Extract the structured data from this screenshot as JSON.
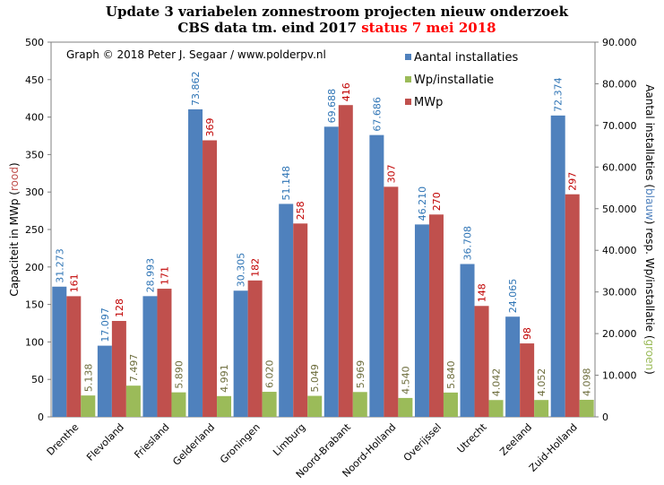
{
  "chart_data": {
    "type": "bar",
    "title_line1": "Update 3 variabelen zonnestroom projecten nieuw onderzoek",
    "title_line2": "CBS data tm. eind 2017",
    "title_status": "status 7 mei 2018",
    "credit": "Graph © 2018 Peter J. Segaar / www.polderpv.nl",
    "ylabel_left": {
      "pre": "Capaciteit in MWp (",
      "color_word": "rood",
      "post": ")"
    },
    "ylabel_right": {
      "p1": "Aantal installaties (",
      "c1": "blauw",
      "p2": ") resp. Wp/installatie (",
      "c2": "groen",
      "p3": ")"
    },
    "left_axis": {
      "min": 0,
      "max": 500,
      "step": 50,
      "ticks": [
        "0",
        "50",
        "100",
        "150",
        "200",
        "250",
        "300",
        "350",
        "400",
        "450",
        "500"
      ]
    },
    "right_axis": {
      "min": 0,
      "max": 90000,
      "step": 10000,
      "ticks": [
        "0",
        "10.000",
        "20.000",
        "30.000",
        "40.000",
        "50.000",
        "60.000",
        "70.000",
        "80.000",
        "90.000"
      ]
    },
    "grid": false,
    "legend_position": "top-right",
    "categories": [
      "Drenthe",
      "Flevoland",
      "Friesland",
      "Gelderland",
      "Groningen",
      "Limburg",
      "Noord-Brabant",
      "Noord-Holland",
      "Overijssel",
      "Utrecht",
      "Zeeland",
      "Zuid-Holland"
    ],
    "series": [
      {
        "name": "Aantal installaties",
        "axis": "right",
        "color": "#4f81bd",
        "label_color": "#2e74b5",
        "values": [
          31273,
          17097,
          28993,
          73862,
          30305,
          51148,
          69688,
          67686,
          46210,
          36708,
          24065,
          72374
        ],
        "labels": [
          "31.273",
          "17.097",
          "28.993",
          "73.862",
          "30.305",
          "51.148",
          "69.688",
          "67.686",
          "46.210",
          "36.708",
          "24.065",
          "72.374"
        ]
      },
      {
        "name": "Wp/installatie",
        "axis": "right",
        "color": "#9bbb59",
        "label_color": "#6d6d3d",
        "values": [
          5138,
          7497,
          5890,
          4991,
          6020,
          5049,
          5969,
          4540,
          5840,
          4042,
          4052,
          4098
        ],
        "labels": [
          "5.138",
          "7.497",
          "5.890",
          "4.991",
          "6.020",
          "5.049",
          "5.969",
          "4.540",
          "5.840",
          "4.042",
          "4.052",
          "4.098"
        ]
      },
      {
        "name": "MWp",
        "axis": "left",
        "color": "#c0504d",
        "label_color": "#c00000",
        "values": [
          161,
          128,
          171,
          369,
          182,
          258,
          416,
          307,
          270,
          148,
          98,
          297
        ],
        "labels": [
          "161",
          "128",
          "171",
          "369",
          "182",
          "258",
          "416",
          "307",
          "270",
          "148",
          "98",
          "297"
        ]
      }
    ]
  }
}
